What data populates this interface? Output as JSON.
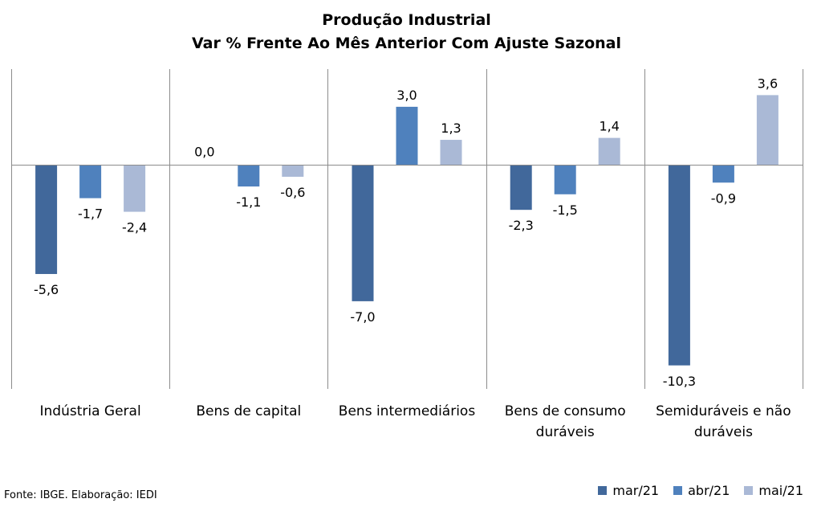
{
  "chart_data": {
    "type": "bar",
    "title": [
      "Produção Industrial",
      "Var % Frente Ao Mês Anterior Com Ajuste Sazonal"
    ],
    "categories": [
      [
        "Indústria Geral"
      ],
      [
        "Bens de capital"
      ],
      [
        "Bens intermediários"
      ],
      [
        "Bens de consumo",
        "duráveis"
      ],
      [
        "Semiduráveis e não",
        "duráveis"
      ]
    ],
    "series": [
      {
        "name": "mar/21",
        "color": "#41689b",
        "values": [
          -5.6,
          0.0,
          -7.0,
          -2.3,
          -10.3
        ],
        "labels": [
          "-5,6",
          "0,0",
          "-7,0",
          "-2,3",
          "-10,3"
        ]
      },
      {
        "name": "abr/21",
        "color": "#4f81bd",
        "values": [
          -1.7,
          -1.1,
          3.0,
          -1.5,
          -0.9
        ],
        "labels": [
          "-1,7",
          "-1,1",
          "3,0",
          "-1,5",
          "-0,9"
        ]
      },
      {
        "name": "mai/21",
        "color": "#aab9d6",
        "values": [
          -2.4,
          -0.6,
          1.3,
          1.4,
          3.6
        ],
        "labels": [
          "-2,4",
          "-0,6",
          "1,3",
          "1,4",
          "3,6"
        ]
      }
    ],
    "ylim": [
      -11.5,
      5.0
    ],
    "grid": false,
    "legend_position": "bottom-right"
  },
  "source": "Fonte: IBGE. Elaboração: IEDI"
}
